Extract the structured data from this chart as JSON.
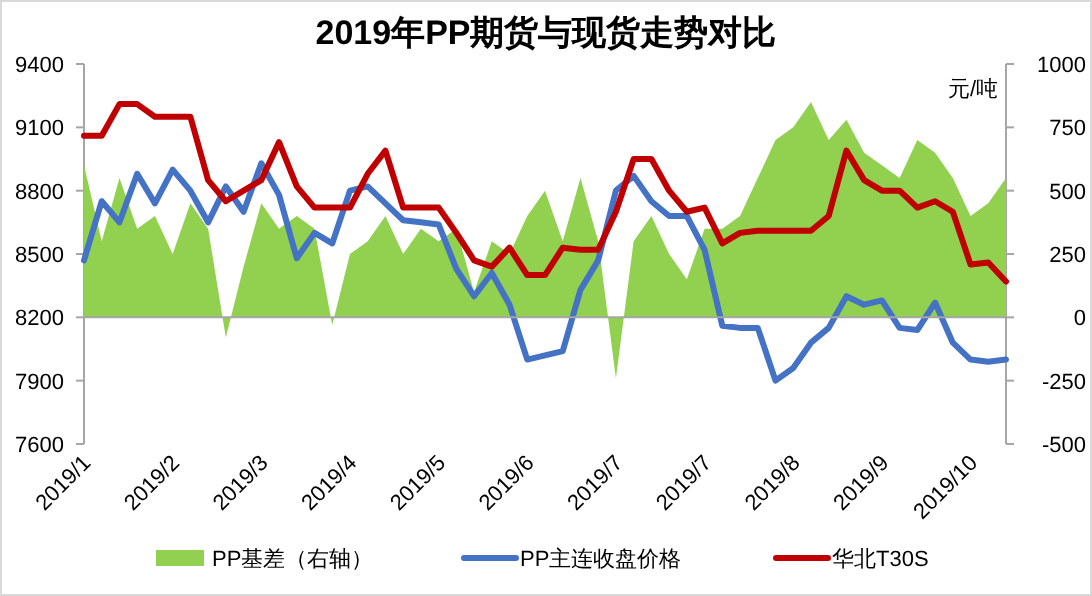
{
  "chart_data": {
    "type": "line",
    "title": "2019年PP期货与现货走势对比",
    "y2label": "元/吨",
    "categories": [
      "2019/1",
      null,
      null,
      null,
      null,
      "2019/2",
      null,
      null,
      null,
      null,
      "2019/3",
      null,
      null,
      null,
      null,
      "2019/4",
      null,
      null,
      null,
      null,
      "2019/5",
      null,
      null,
      null,
      null,
      "2019/6",
      null,
      null,
      null,
      null,
      "2019/7",
      null,
      null,
      null,
      null,
      "2019/7",
      null,
      null,
      null,
      null,
      "2019/8",
      null,
      null,
      null,
      null,
      "2019/9",
      null,
      null,
      null,
      null,
      "2019/10",
      null,
      null
    ],
    "series": [
      {
        "name": "PP基差（右轴）",
        "type": "area",
        "axis": "y2",
        "color": "#92d050",
        "values": [
          600,
          300,
          550,
          350,
          400,
          250,
          450,
          350,
          -80,
          200,
          450,
          350,
          400,
          350,
          -30,
          250,
          300,
          400,
          250,
          350,
          300,
          350,
          100,
          300,
          250,
          400,
          500,
          300,
          550,
          300,
          -240,
          300,
          400,
          250,
          150,
          350,
          350,
          400,
          550,
          700,
          750,
          850,
          700,
          780,
          650,
          600,
          550,
          700,
          650,
          550,
          400,
          450,
          550
        ]
      },
      {
        "name": "PP主连收盘价格",
        "color": "#4472c4",
        "values": [
          8470,
          8750,
          8650,
          8880,
          8740,
          8900,
          8800,
          8650,
          8820,
          8700,
          8930,
          8780,
          8480,
          8600,
          8550,
          8800,
          8820,
          8740,
          8660,
          8650,
          8640,
          8430,
          8300,
          8410,
          8260,
          8000,
          8020,
          8040,
          8330,
          8470,
          8800,
          8870,
          8750,
          8680,
          8680,
          8520,
          8160,
          8150,
          8150,
          7900,
          7960,
          8080,
          8150,
          8300,
          8260,
          8280,
          8150,
          8140,
          8270,
          8080,
          8000,
          7990,
          8000
        ]
      },
      {
        "name": "华北T30S",
        "color": "#c00000",
        "values": [
          9060,
          9060,
          9210,
          9210,
          9150,
          9150,
          9150,
          8850,
          8750,
          8800,
          8850,
          9030,
          8820,
          8720,
          8720,
          8720,
          8880,
          8990,
          8720,
          8720,
          8720,
          8600,
          8470,
          8440,
          8530,
          8400,
          8400,
          8530,
          8520,
          8520,
          8700,
          8950,
          8950,
          8800,
          8700,
          8720,
          8550,
          8600,
          8610,
          8610,
          8610,
          8610,
          8680,
          8990,
          8850,
          8800,
          8800,
          8720,
          8750,
          8700,
          8450,
          8460,
          8370
        ]
      }
    ],
    "ylim": [
      7600,
      9400
    ],
    "yticks": [
      7600,
      7900,
      8200,
      8500,
      8800,
      9100,
      9400
    ],
    "y2lim": [
      -500,
      1000
    ],
    "y2ticks": [
      -500,
      -250,
      0,
      250,
      500,
      750,
      1000
    ],
    "ref_lines": [
      {
        "axis": "y2",
        "value": 0,
        "color": "#a6a6a6"
      }
    ],
    "legend": "bottom"
  }
}
